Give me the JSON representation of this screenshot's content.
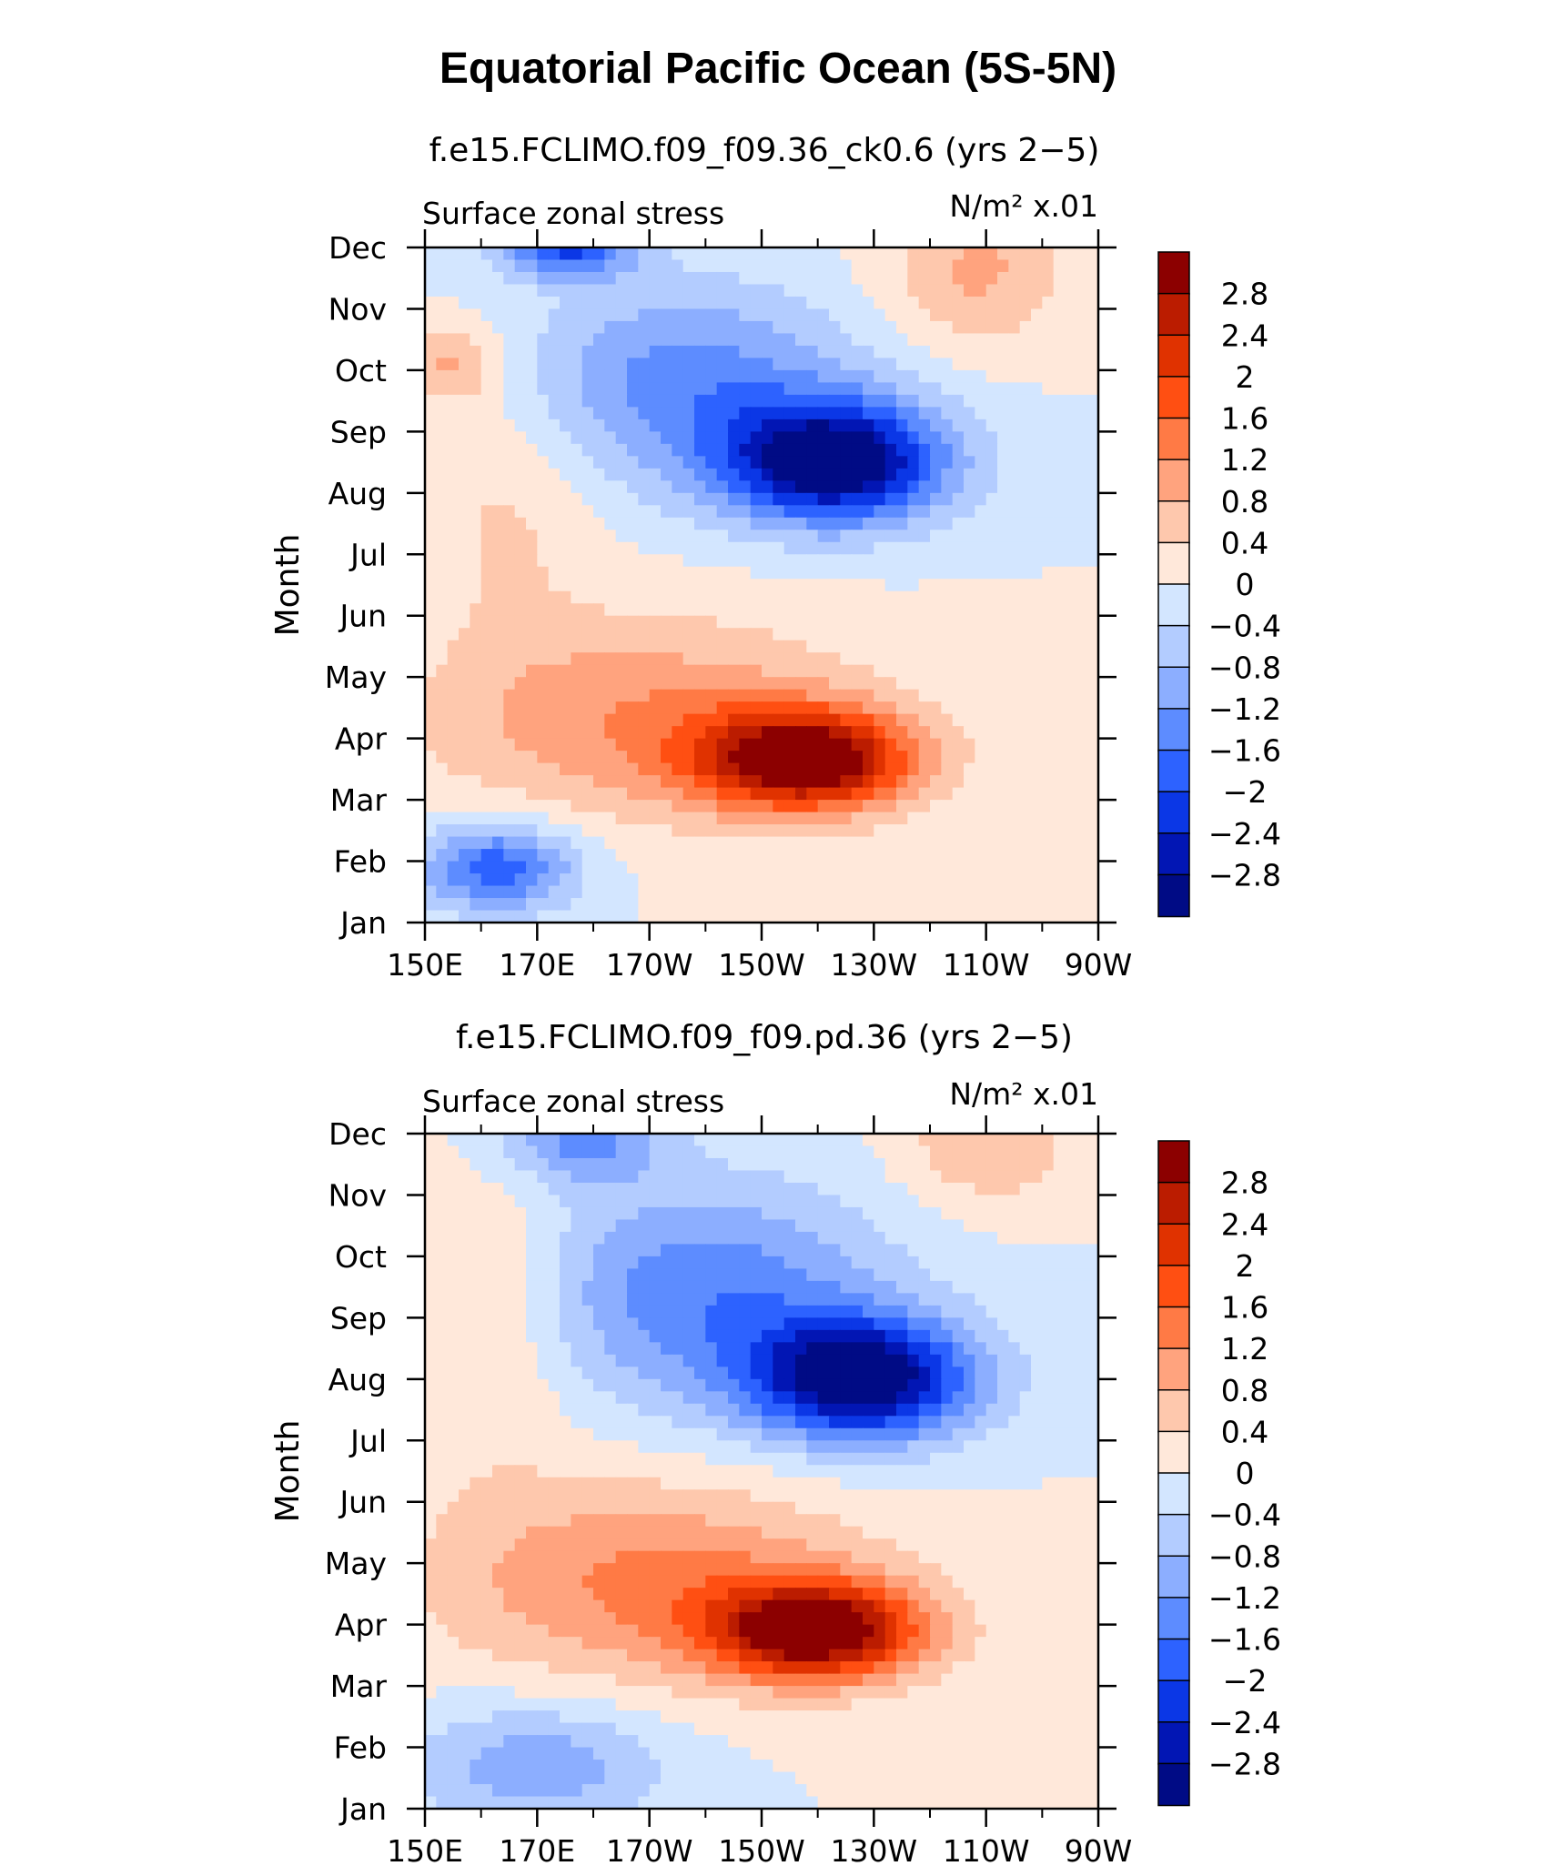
{
  "figure_title": "Equatorial Pacific Ocean (5S-5N)",
  "chart_data": [
    {
      "type": "heatmap",
      "title": "f.e15.FCLIMO.f09_f09.36_ck0.6 (yrs 2−5)",
      "left_string": "Surface zonal stress",
      "right_string": "N/m² x.01",
      "xlabel": "",
      "ylabel": "Month",
      "x_ticks": [
        "150E",
        "170E",
        "170W",
        "150W",
        "130W",
        "110W",
        "90W"
      ],
      "x_tick_lon": [
        150,
        170,
        190,
        210,
        230,
        250,
        270
      ],
      "xlim": [
        150,
        270
      ],
      "y_ticks": [
        "Jan",
        "Feb",
        "Mar",
        "Apr",
        "May",
        "Jun",
        "Jul",
        "Aug",
        "Sep",
        "Oct",
        "Nov",
        "Dec"
      ],
      "ylim": [
        0,
        11
      ],
      "colorbar_levels": [
        "2.8",
        "2.4",
        "2",
        "1.6",
        "1.2",
        "0.8",
        "0.4",
        "0",
        "−0.4",
        "−0.8",
        "−1.2",
        "−1.6",
        "−2",
        "−2.4",
        "−2.8"
      ],
      "colors": [
        "#8c0000",
        "#bb1c00",
        "#e03200",
        "#ff4f12",
        "#ff7a45",
        "#ffa37e",
        "#fec8ad",
        "#ffe8da",
        "#d3e6ff",
        "#b3ccff",
        "#8caeff",
        "#5d8cff",
        "#2d62ff",
        "#0b37e6",
        "#0216b4",
        "#000b85"
      ],
      "features": [
        {
          "lon": 218,
          "month": 2.65,
          "amp": 3.2,
          "wx": 19,
          "wy": 0.8,
          "rot": -0.24
        },
        {
          "lon": 190,
          "month": 3.3,
          "amp": 1.2,
          "wx": 38,
          "wy": 1.6,
          "rot": -0.24
        },
        {
          "lon": 223,
          "month": 7.5,
          "amp": -3.25,
          "wx": 20,
          "wy": 1.0,
          "rot": -0.3
        },
        {
          "lon": 196,
          "month": 8.8,
          "amp": -1.4,
          "wx": 30,
          "wy": 1.6,
          "rot": -0.3
        },
        {
          "lon": 175,
          "month": 11.0,
          "amp": -2.0,
          "wx": 12,
          "wy": 0.5,
          "rot": 0
        },
        {
          "lon": 163,
          "month": 0.9,
          "amp": -1.9,
          "wx": 14,
          "wy": 0.7,
          "rot": 0
        },
        {
          "lon": 248,
          "month": 10.6,
          "amp": 0.9,
          "wx": 16,
          "wy": 1.2,
          "rot": 0
        },
        {
          "lon": 155,
          "month": 9.1,
          "amp": 0.9,
          "wx": 8,
          "wy": 0.6,
          "rot": 0
        },
        {
          "lon": 165,
          "month": 7.0,
          "amp": 0.5,
          "wx": 15,
          "wy": 2.5,
          "rot": 0
        }
      ]
    },
    {
      "type": "heatmap",
      "title": "f.e15.FCLIMO.f09_f09.pd.36 (yrs 2−5)",
      "left_string": "Surface zonal stress",
      "right_string": "N/m² x.01",
      "xlabel": "",
      "ylabel": "Month",
      "x_ticks": [
        "150E",
        "170E",
        "170W",
        "150W",
        "130W",
        "110W",
        "90W"
      ],
      "x_tick_lon": [
        150,
        170,
        190,
        210,
        230,
        250,
        270
      ],
      "xlim": [
        150,
        270
      ],
      "y_ticks": [
        "Jan",
        "Feb",
        "Mar",
        "Apr",
        "May",
        "Jun",
        "Jul",
        "Aug",
        "Sep",
        "Oct",
        "Nov",
        "Dec"
      ],
      "ylim": [
        0,
        11
      ],
      "colorbar_levels": [
        "2.8",
        "2.4",
        "2",
        "1.6",
        "1.2",
        "0.8",
        "0.4",
        "0",
        "−0.4",
        "−0.8",
        "−1.2",
        "−1.6",
        "−2",
        "−2.4",
        "−2.8"
      ],
      "colors": [
        "#8c0000",
        "#bb1c00",
        "#e03200",
        "#ff4f12",
        "#ff7a45",
        "#ffa37e",
        "#fec8ad",
        "#ffe8da",
        "#d3e6ff",
        "#b3ccff",
        "#8caeff",
        "#5d8cff",
        "#2d62ff",
        "#0b37e6",
        "#0216b4",
        "#000b85"
      ],
      "features": [
        {
          "lon": 220,
          "month": 2.9,
          "amp": 3.2,
          "wx": 19,
          "wy": 0.8,
          "rot": -0.22
        },
        {
          "lon": 190,
          "month": 3.7,
          "amp": 1.3,
          "wx": 38,
          "wy": 1.6,
          "rot": -0.22
        },
        {
          "lon": 228,
          "month": 7.0,
          "amp": -3.2,
          "wx": 20,
          "wy": 1.0,
          "rot": -0.3
        },
        {
          "lon": 200,
          "month": 8.4,
          "amp": -1.5,
          "wx": 32,
          "wy": 1.8,
          "rot": -0.3
        },
        {
          "lon": 178,
          "month": 10.9,
          "amp": -1.3,
          "wx": 14,
          "wy": 0.7,
          "rot": 0
        },
        {
          "lon": 170,
          "month": 0.7,
          "amp": -1.1,
          "wx": 22,
          "wy": 1.0,
          "rot": 0
        },
        {
          "lon": 250,
          "month": 10.8,
          "amp": 0.8,
          "wx": 15,
          "wy": 1.0,
          "rot": 0
        },
        {
          "lon": 163,
          "month": 8.0,
          "amp": 0.6,
          "wx": 14,
          "wy": 2.5,
          "rot": 0
        }
      ]
    }
  ]
}
